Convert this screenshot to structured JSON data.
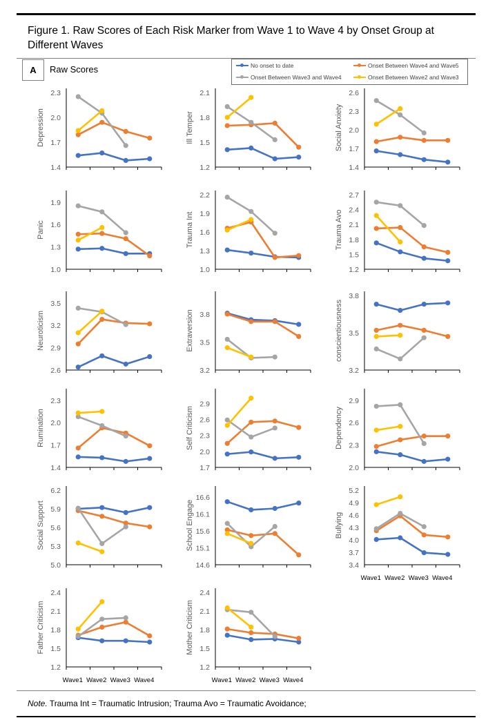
{
  "figure": {
    "title": "Figure  1. Raw Scores of Each Risk Marker  from Wave 1 to Wave 4 by Onset Group at Different Waves",
    "panel_letter": "A",
    "panel_title": "Raw Scores",
    "note_label": "Note.",
    "note_text": " Trauma Int = Traumatic Intrusion; Trauma Avo = Traumatic Avoidance;"
  },
  "legend": [
    {
      "name": "No onset to date",
      "color": "#4472C4"
    },
    {
      "name": "Onset Between Wave4 and Wave5",
      "color": "#ED7D31"
    },
    {
      "name": "Onset Between Wave3 and Wave4",
      "color": "#A5A5A5"
    },
    {
      "name": "Onset Between Wave2 and Wave3",
      "color": "#FFC000"
    }
  ],
  "chart_data": [
    {
      "type": "line",
      "title": "",
      "ylabel": "Depression",
      "categories": [
        "Wave1",
        "Wave2",
        "Wave3",
        "Wave4"
      ],
      "ylim": [
        1.4,
        2.3
      ],
      "yticks": [
        1.4,
        1.7,
        2.0,
        2.3
      ],
      "show_xlabels": false,
      "series": [
        {
          "name": "No onset to date",
          "values": [
            1.54,
            1.57,
            1.48,
            1.5
          ]
        },
        {
          "name": "Onset Between Wave4 and Wave5",
          "values": [
            1.79,
            1.94,
            1.83,
            1.75
          ]
        },
        {
          "name": "Onset Between Wave3 and Wave4",
          "values": [
            2.25,
            2.05,
            1.66,
            null
          ]
        },
        {
          "name": "Onset Between Wave2 and Wave3",
          "values": [
            1.84,
            2.08,
            null,
            null
          ]
        }
      ]
    },
    {
      "type": "line",
      "title": "",
      "ylabel": "Ill Temper",
      "categories": [
        "Wave1",
        "Wave2",
        "Wave3",
        "Wave4"
      ],
      "ylim": [
        1.2,
        2.1
      ],
      "yticks": [
        1.2,
        1.5,
        1.8,
        2.1
      ],
      "show_xlabels": false,
      "series": [
        {
          "name": "No onset to date",
          "values": [
            1.41,
            1.43,
            1.3,
            1.32
          ]
        },
        {
          "name": "Onset Between Wave4 and Wave5",
          "values": [
            1.7,
            1.71,
            1.73,
            1.44
          ]
        },
        {
          "name": "Onset Between Wave3 and Wave4",
          "values": [
            1.93,
            1.74,
            1.53,
            null
          ]
        },
        {
          "name": "Onset Between Wave2 and Wave3",
          "values": [
            1.8,
            2.04,
            null,
            null
          ]
        }
      ]
    },
    {
      "type": "line",
      "title": "",
      "ylabel": "Social Anxiety",
      "categories": [
        "Wave1",
        "Wave2",
        "Wave3",
        "Wave4"
      ],
      "ylim": [
        1.4,
        2.6
      ],
      "yticks": [
        1.4,
        1.7,
        2.0,
        2.3,
        2.6
      ],
      "show_xlabels": false,
      "series": [
        {
          "name": "No onset to date",
          "values": [
            1.66,
            1.6,
            1.52,
            1.48
          ]
        },
        {
          "name": "Onset Between Wave4 and Wave5",
          "values": [
            1.81,
            1.88,
            1.83,
            1.83
          ]
        },
        {
          "name": "Onset Between Wave3 and Wave4",
          "values": [
            2.47,
            2.24,
            1.95,
            null
          ]
        },
        {
          "name": "Onset Between Wave2 and Wave3",
          "values": [
            2.09,
            2.34,
            null,
            null
          ]
        }
      ]
    },
    {
      "type": "line",
      "title": "",
      "ylabel": "Panic",
      "categories": [
        "Wave1",
        "Wave2",
        "Wave3",
        "Wave4"
      ],
      "ylim": [
        1.0,
        2.0
      ],
      "yticks": [
        1.0,
        1.3,
        1.6,
        1.9
      ],
      "show_xlabels": false,
      "series": [
        {
          "name": "No onset to date",
          "values": [
            1.27,
            1.28,
            1.21,
            1.21
          ]
        },
        {
          "name": "Onset Between Wave4 and Wave5",
          "values": [
            1.47,
            1.48,
            1.41,
            1.18
          ]
        },
        {
          "name": "Onset Between Wave3 and Wave4",
          "values": [
            1.85,
            1.77,
            1.49,
            null
          ]
        },
        {
          "name": "Onset Between Wave2 and Wave3",
          "values": [
            1.39,
            1.56,
            null,
            null
          ]
        }
      ]
    },
    {
      "type": "line",
      "title": "",
      "ylabel": "Trauma Int",
      "categories": [
        "Wave1",
        "Wave2",
        "Wave3",
        "Wave4"
      ],
      "ylim": [
        1.0,
        2.2
      ],
      "yticks": [
        1.0,
        1.3,
        1.6,
        1.9,
        2.2
      ],
      "show_xlabels": false,
      "series": [
        {
          "name": "No onset to date",
          "values": [
            1.31,
            1.26,
            1.2,
            1.19
          ]
        },
        {
          "name": "Onset Between Wave4 and Wave5",
          "values": [
            1.66,
            1.76,
            1.19,
            1.22
          ]
        },
        {
          "name": "Onset Between Wave3 and Wave4",
          "values": [
            2.16,
            1.93,
            1.58,
            null
          ]
        },
        {
          "name": "Onset Between Wave2 and Wave3",
          "values": [
            1.63,
            1.8,
            null,
            null
          ]
        }
      ]
    },
    {
      "type": "line",
      "title": "",
      "ylabel": "Trauma Avo",
      "categories": [
        "Wave1",
        "Wave2",
        "Wave3",
        "Wave4"
      ],
      "ylim": [
        1.2,
        2.7
      ],
      "yticks": [
        1.2,
        1.5,
        1.8,
        2.1,
        2.4,
        2.7
      ],
      "show_xlabels": false,
      "series": [
        {
          "name": "No onset to date",
          "values": [
            1.73,
            1.55,
            1.42,
            1.37
          ]
        },
        {
          "name": "Onset Between Wave4 and Wave5",
          "values": [
            2.02,
            2.04,
            1.65,
            1.54
          ]
        },
        {
          "name": "Onset Between Wave3 and Wave4",
          "values": [
            2.55,
            2.48,
            2.08,
            null
          ]
        },
        {
          "name": "Onset Between Wave2 and Wave3",
          "values": [
            2.28,
            1.75,
            null,
            null
          ]
        }
      ]
    },
    {
      "type": "line",
      "title": "",
      "ylabel": "Neuroticism",
      "categories": [
        "Wave1",
        "Wave2",
        "Wave3",
        "Wave4"
      ],
      "ylim": [
        2.6,
        3.6
      ],
      "yticks": [
        2.6,
        2.9,
        3.2,
        3.5
      ],
      "show_xlabels": false,
      "series": [
        {
          "name": "No onset to date",
          "values": [
            2.64,
            2.79,
            2.68,
            2.78
          ]
        },
        {
          "name": "Onset Between Wave4 and Wave5",
          "values": [
            2.95,
            3.28,
            3.23,
            3.22
          ]
        },
        {
          "name": "Onset Between Wave3 and Wave4",
          "values": [
            3.43,
            3.38,
            3.21,
            null
          ]
        },
        {
          "name": "Onset Between Wave2 and Wave3",
          "values": [
            3.1,
            3.39,
            null,
            null
          ]
        }
      ]
    },
    {
      "type": "line",
      "title": "",
      "ylabel": "Extraversion",
      "categories": [
        "Wave1",
        "Wave2",
        "Wave3",
        "Wave4"
      ],
      "ylim": [
        3.2,
        4.0
      ],
      "yticks": [
        3.2,
        3.5,
        3.8
      ],
      "show_xlabels": false,
      "series": [
        {
          "name": "No onset to date",
          "values": [
            3.81,
            3.74,
            3.73,
            3.69
          ]
        },
        {
          "name": "Onset Between Wave4 and Wave5",
          "values": [
            3.8,
            3.72,
            3.72,
            3.56
          ]
        },
        {
          "name": "Onset Between Wave3 and Wave4",
          "values": [
            3.53,
            3.33,
            3.34,
            null
          ]
        },
        {
          "name": "Onset Between Wave2 and Wave3",
          "values": [
            3.44,
            3.34,
            null,
            null
          ]
        }
      ]
    },
    {
      "type": "line",
      "title": "",
      "ylabel": "conscientiousness",
      "categories": [
        "Wave1",
        "Wave2",
        "Wave3",
        "Wave4"
      ],
      "ylim": [
        3.2,
        3.8
      ],
      "yticks": [
        3.2,
        3.5,
        3.8
      ],
      "show_xlabels": false,
      "series": [
        {
          "name": "No onset to date",
          "values": [
            3.73,
            3.68,
            3.73,
            3.74
          ]
        },
        {
          "name": "Onset Between Wave4 and Wave5",
          "values": [
            3.52,
            3.56,
            3.52,
            3.47
          ]
        },
        {
          "name": "Onset Between Wave3 and Wave4",
          "values": [
            3.37,
            3.29,
            3.46,
            null
          ]
        },
        {
          "name": "Onset Between Wave2 and Wave3",
          "values": [
            3.47,
            3.48,
            null,
            null
          ]
        }
      ]
    },
    {
      "type": "line",
      "title": "",
      "ylabel": "Rumination",
      "categories": [
        "Wave1",
        "Wave2",
        "Wave3",
        "Wave4"
      ],
      "ylim": [
        1.4,
        2.4
      ],
      "yticks": [
        1.4,
        1.7,
        2.0,
        2.3
      ],
      "show_xlabels": false,
      "series": [
        {
          "name": "No onset to date",
          "values": [
            1.54,
            1.53,
            1.48,
            1.52
          ]
        },
        {
          "name": "Onset Between Wave4 and Wave5",
          "values": [
            1.66,
            1.93,
            1.86,
            1.69
          ]
        },
        {
          "name": "Onset Between Wave3 and Wave4",
          "values": [
            2.08,
            1.96,
            1.82,
            null
          ]
        },
        {
          "name": "Onset Between Wave2 and Wave3",
          "values": [
            2.13,
            2.15,
            null,
            null
          ]
        }
      ]
    },
    {
      "type": "line",
      "title": "",
      "ylabel": "Self Criticism",
      "categories": [
        "Wave1",
        "Wave2",
        "Wave3",
        "Wave4"
      ],
      "ylim": [
        1.7,
        3.1
      ],
      "yticks": [
        1.7,
        2.0,
        2.3,
        2.6,
        2.9
      ],
      "show_xlabels": false,
      "series": [
        {
          "name": "No onset to date",
          "values": [
            1.95,
            1.99,
            1.87,
            1.89
          ]
        },
        {
          "name": "Onset Between Wave4 and Wave5",
          "values": [
            2.15,
            2.55,
            2.57,
            2.45
          ]
        },
        {
          "name": "Onset Between Wave3 and Wave4",
          "values": [
            2.59,
            2.27,
            2.44,
            null
          ]
        },
        {
          "name": "Onset Between Wave2 and Wave3",
          "values": [
            2.49,
            3.0,
            null,
            null
          ]
        }
      ]
    },
    {
      "type": "line",
      "title": "",
      "ylabel": "Dependency",
      "categories": [
        "Wave1",
        "Wave2",
        "Wave3",
        "Wave4"
      ],
      "ylim": [
        2.0,
        3.0
      ],
      "yticks": [
        2.0,
        2.3,
        2.6,
        2.9
      ],
      "show_xlabels": false,
      "series": [
        {
          "name": "No onset to date",
          "values": [
            2.21,
            2.17,
            2.08,
            2.11
          ]
        },
        {
          "name": "Onset Between Wave4 and Wave5",
          "values": [
            2.28,
            2.37,
            2.42,
            2.42
          ]
        },
        {
          "name": "Onset Between Wave3 and Wave4",
          "values": [
            2.82,
            2.84,
            2.32,
            null
          ]
        },
        {
          "name": "Onset Between Wave2 and Wave3",
          "values": [
            2.5,
            2.55,
            null,
            null
          ]
        }
      ]
    },
    {
      "type": "line",
      "title": "",
      "ylabel": "Social Support",
      "categories": [
        "Wave1",
        "Wave2",
        "Wave3",
        "Wave4"
      ],
      "ylim": [
        5.0,
        6.2
      ],
      "yticks": [
        5.0,
        5.3,
        5.6,
        5.9,
        6.2
      ],
      "show_xlabels": false,
      "series": [
        {
          "name": "No onset to date",
          "values": [
            5.9,
            5.92,
            5.84,
            5.92
          ]
        },
        {
          "name": "Onset Between Wave4 and Wave5",
          "values": [
            5.87,
            5.78,
            5.67,
            5.61
          ]
        },
        {
          "name": "Onset Between Wave3 and Wave4",
          "values": [
            5.91,
            5.34,
            5.61,
            null
          ]
        },
        {
          "name": "Onset Between Wave2 and Wave3",
          "values": [
            5.35,
            5.21,
            null,
            null
          ]
        }
      ]
    },
    {
      "type": "line",
      "title": "",
      "ylabel": "School Engage",
      "categories": [
        "Wave1",
        "Wave2",
        "Wave3",
        "Wave4"
      ],
      "ylim": [
        14.6,
        16.8
      ],
      "yticks": [
        14.6,
        15.1,
        15.6,
        16.1,
        16.6
      ],
      "show_xlabels": false,
      "series": [
        {
          "name": "No onset to date",
          "values": [
            16.46,
            16.22,
            16.26,
            16.42
          ]
        },
        {
          "name": "Onset Between Wave4 and Wave5",
          "values": [
            15.63,
            15.46,
            15.52,
            14.89
          ]
        },
        {
          "name": "Onset Between Wave3 and Wave4",
          "values": [
            15.82,
            15.13,
            15.73,
            null
          ]
        },
        {
          "name": "Onset Between Wave2 and Wave3",
          "values": [
            15.52,
            15.23,
            null,
            null
          ]
        }
      ]
    },
    {
      "type": "line",
      "title": "",
      "ylabel": "Bullying",
      "categories": [
        "Wave1",
        "Wave2",
        "Wave3",
        "Wave4"
      ],
      "ylim": [
        3.4,
        5.2
      ],
      "yticks": [
        3.4,
        3.7,
        4.0,
        4.3,
        4.6,
        4.9,
        5.2
      ],
      "show_xlabels": true,
      "series": [
        {
          "name": "No onset to date",
          "values": [
            4.01,
            4.05,
            3.69,
            3.65
          ]
        },
        {
          "name": "Onset Between Wave4 and Wave5",
          "values": [
            4.22,
            4.58,
            4.12,
            4.07
          ]
        },
        {
          "name": "Onset Between Wave3 and Wave4",
          "values": [
            4.27,
            4.64,
            4.32,
            null
          ]
        },
        {
          "name": "Onset Between Wave2 and Wave3",
          "values": [
            4.85,
            5.04,
            null,
            null
          ]
        }
      ]
    },
    {
      "type": "line",
      "title": "",
      "ylabel": "Father Criticism",
      "categories": [
        "Wave1",
        "Wave2",
        "Wave3",
        "Wave4"
      ],
      "ylim": [
        1.2,
        2.4
      ],
      "yticks": [
        1.2,
        1.5,
        1.8,
        2.1,
        2.4
      ],
      "show_xlabels": true,
      "series": [
        {
          "name": "No onset to date",
          "values": [
            1.67,
            1.62,
            1.62,
            1.6
          ]
        },
        {
          "name": "Onset Between Wave4 and Wave5",
          "values": [
            1.71,
            1.84,
            1.92,
            1.7
          ]
        },
        {
          "name": "Onset Between Wave3 and Wave4",
          "values": [
            1.69,
            1.97,
            1.99,
            null
          ]
        },
        {
          "name": "Onset Between Wave2 and Wave3",
          "values": [
            1.81,
            2.25,
            null,
            null
          ]
        }
      ]
    },
    {
      "type": "line",
      "title": "",
      "ylabel": "Mother Criticism",
      "categories": [
        "Wave1",
        "Wave2",
        "Wave3",
        "Wave4"
      ],
      "ylim": [
        1.2,
        2.4
      ],
      "yticks": [
        1.2,
        1.5,
        1.8,
        2.1,
        2.4
      ],
      "show_xlabels": true,
      "series": [
        {
          "name": "No onset to date",
          "values": [
            1.71,
            1.64,
            1.65,
            1.6
          ]
        },
        {
          "name": "Onset Between Wave4 and Wave5",
          "values": [
            1.81,
            1.75,
            1.73,
            1.66
          ]
        },
        {
          "name": "Onset Between Wave3 and Wave4",
          "values": [
            2.12,
            2.08,
            1.69,
            null
          ]
        },
        {
          "name": "Onset Between Wave2 and Wave3",
          "values": [
            2.15,
            1.84,
            null,
            null
          ]
        }
      ]
    }
  ]
}
